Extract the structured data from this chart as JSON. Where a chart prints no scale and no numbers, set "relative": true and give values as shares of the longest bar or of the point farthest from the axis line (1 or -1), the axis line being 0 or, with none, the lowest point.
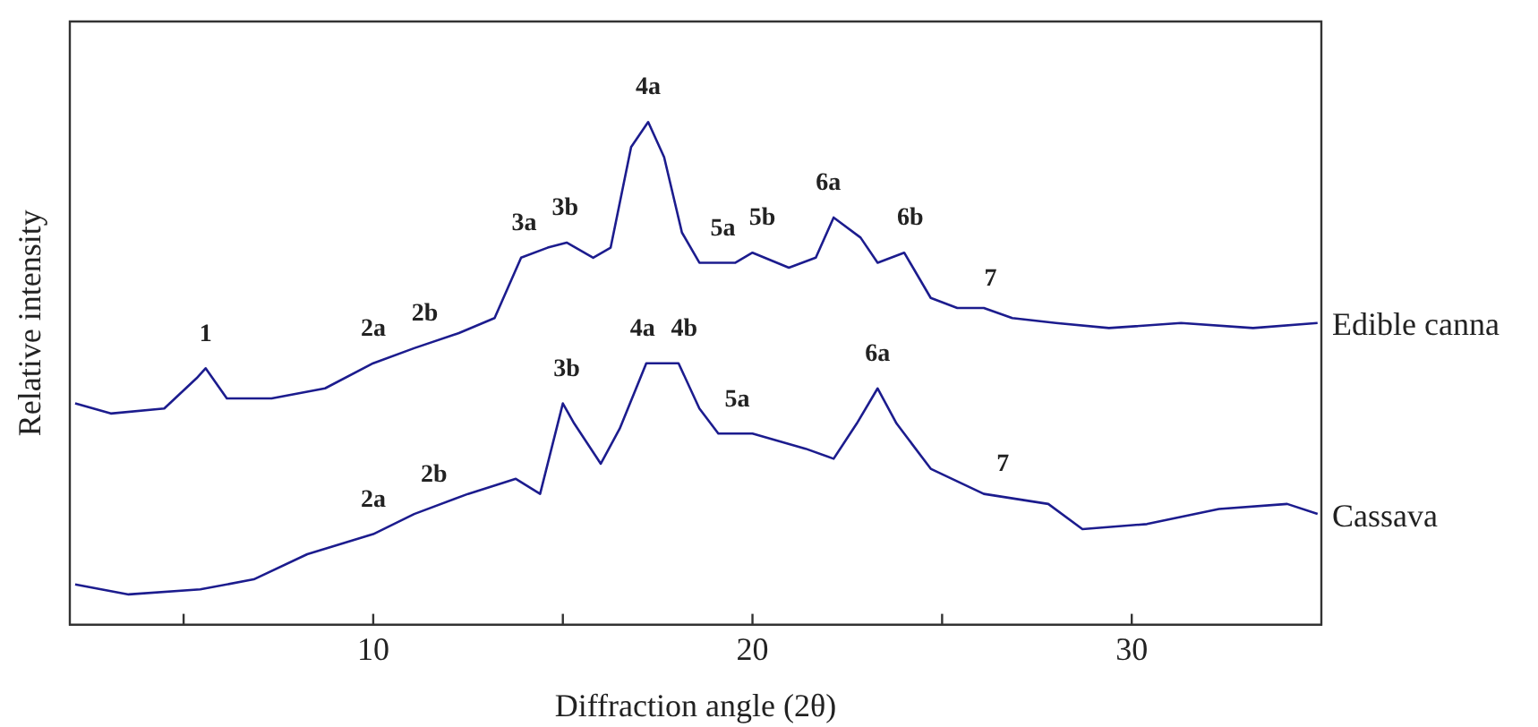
{
  "chart_data": {
    "type": "line",
    "xlabel": "Diffraction angle (2θ)",
    "ylabel": "Relative intensity",
    "relative": true,
    "xlim": [
      2,
      35
    ],
    "xticks": [
      {
        "value": 5,
        "label": null
      },
      10,
      {
        "value": 15,
        "label": null
      },
      20,
      {
        "value": 25,
        "label": null
      },
      30
    ],
    "marker": "none",
    "legend": false,
    "series": [
      {
        "name": "Edible canna",
        "color": "#1c1c8e",
        "x": [
          2.14,
          3.08,
          4.49,
          5.34,
          5.58,
          6.14,
          7.32,
          8.73,
          10,
          11.08,
          12.26,
          13.2,
          13.9,
          14.6,
          15.1,
          15.8,
          16.26,
          16.8,
          17.25,
          17.67,
          18.14,
          18.6,
          19.55,
          20,
          20.96,
          21.67,
          22.14,
          22.85,
          23.3,
          24,
          24.7,
          25.4,
          26.1,
          26.85,
          28,
          29.4,
          31.3,
          33.2,
          34.9
        ],
        "values": [
          0.44,
          0.42,
          0.43,
          0.49,
          0.51,
          0.45,
          0.45,
          0.47,
          0.52,
          0.55,
          0.58,
          0.61,
          0.73,
          0.75,
          0.76,
          0.73,
          0.75,
          0.95,
          1,
          0.93,
          0.78,
          0.72,
          0.72,
          0.74,
          0.71,
          0.73,
          0.81,
          0.77,
          0.72,
          0.74,
          0.65,
          0.63,
          0.63,
          0.61,
          0.6,
          0.59,
          0.6,
          0.59,
          0.6
        ]
      },
      {
        "name": "Cassava",
        "color": "#1c1c8e",
        "x": [
          2.14,
          3.55,
          5.44,
          6.85,
          8.26,
          10,
          11.08,
          12.5,
          13.76,
          14.4,
          15,
          15.3,
          16,
          16.5,
          17.2,
          18.05,
          18.6,
          19.1,
          20,
          21.4,
          22.14,
          22.75,
          23.3,
          23.8,
          24.7,
          26.1,
          27.8,
          28.7,
          30.4,
          32.3,
          34.1,
          34.9
        ],
        "values": [
          0.08,
          0.06,
          0.07,
          0.09,
          0.14,
          0.18,
          0.22,
          0.26,
          0.29,
          0.26,
          0.44,
          0.4,
          0.32,
          0.39,
          0.52,
          0.52,
          0.43,
          0.38,
          0.38,
          0.35,
          0.33,
          0.4,
          0.47,
          0.4,
          0.31,
          0.26,
          0.24,
          0.19,
          0.2,
          0.23,
          0.24,
          0.22
        ]
      }
    ],
    "annotations": [
      {
        "text": "1",
        "x": 5.58,
        "y": 0.51
      },
      {
        "text": "2a",
        "x": 10,
        "y": 0.52
      },
      {
        "text": "2b",
        "x": 11.36,
        "y": 0.55
      },
      {
        "text": "3a",
        "x": 13.98,
        "y": 0.73
      },
      {
        "text": "3b",
        "x": 15.06,
        "y": 0.76
      },
      {
        "text": "4a",
        "x": 17.25,
        "y": 1
      },
      {
        "text": "5a",
        "x": 19.22,
        "y": 0.72
      },
      {
        "text": "5b",
        "x": 20.26,
        "y": 0.74
      },
      {
        "text": "6a",
        "x": 22,
        "y": 0.81
      },
      {
        "text": "6b",
        "x": 24.16,
        "y": 0.74
      },
      {
        "text": "7",
        "x": 26.28,
        "y": 0.62
      },
      {
        "text": "2a",
        "x": 10,
        "y": 0.18
      },
      {
        "text": "2b",
        "x": 11.6,
        "y": 0.23
      },
      {
        "text": "3b",
        "x": 15.1,
        "y": 0.44
      },
      {
        "text": "4a",
        "x": 17.1,
        "y": 0.52
      },
      {
        "text": "4b",
        "x": 18.2,
        "y": 0.52
      },
      {
        "text": "5a",
        "x": 19.6,
        "y": 0.38
      },
      {
        "text": "6a",
        "x": 23.3,
        "y": 0.47
      },
      {
        "text": "7",
        "x": 26.6,
        "y": 0.25
      }
    ]
  }
}
